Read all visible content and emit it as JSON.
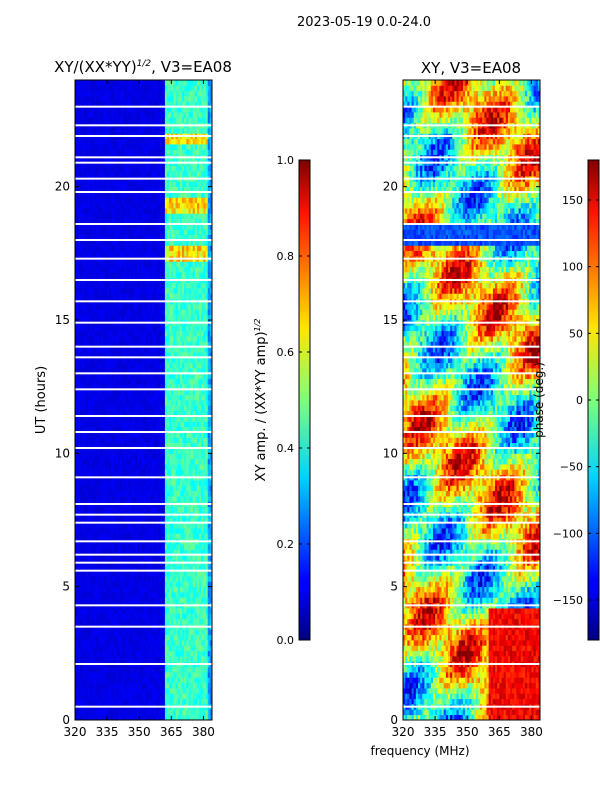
{
  "suptitle": "2023-05-19 0.0-24.0",
  "chart_data": [
    {
      "type": "heatmap",
      "title": "XY/(XX*YY)",
      "title_sup": "1/2",
      "title_suffix": ", V3=EA08",
      "xlabel": "",
      "ylabel": "UT (hours)",
      "xlim": [
        320,
        384
      ],
      "ylim": [
        0,
        24
      ],
      "xticks": [
        320,
        335,
        350,
        365,
        380
      ],
      "yticks": [
        0,
        5,
        10,
        15,
        20
      ],
      "colormap": "jet",
      "colorbar": {
        "label": "XY amp. / (XX*YY amp)",
        "label_sup": "1/2",
        "range": [
          0.0,
          1.0
        ],
        "ticks": [
          "0.0",
          "0.2",
          "0.4",
          "0.6",
          "0.8",
          "1.0"
        ]
      },
      "bright_channels_MHz": [
        364,
        368,
        372,
        376,
        380
      ],
      "bright_hours": [
        17.5,
        19.3,
        21.8
      ],
      "gap_hours": [
        0.5,
        2.1,
        3.5,
        4.3,
        5.6,
        5.9,
        6.2,
        6.7,
        7.4,
        7.7,
        8.1,
        9.1,
        10.2,
        10.8,
        11.4,
        12.4,
        13.0,
        13.6,
        14.0,
        14.9,
        15.7,
        16.5,
        17.3,
        18.0,
        18.6,
        19.8,
        20.3,
        20.9,
        21.1,
        21.9,
        22.3,
        23.0
      ]
    },
    {
      "type": "heatmap",
      "title": "XY, V3=EA08",
      "xlabel": "frequency (MHz)",
      "ylabel": "",
      "xlim": [
        320,
        384
      ],
      "ylim": [
        0,
        24
      ],
      "xticks": [
        320,
        335,
        350,
        365,
        380
      ],
      "yticks": [
        0,
        5,
        10,
        15,
        20
      ],
      "colormap": "jet",
      "colorbar": {
        "label": "phase (deg.)",
        "range": [
          -180,
          180
        ],
        "ticks": [
          "150",
          "100",
          "50",
          "0",
          "−50",
          "−100",
          "−150"
        ]
      },
      "gap_hours": [
        0.5,
        2.1,
        3.5,
        4.3,
        5.6,
        5.9,
        6.2,
        6.7,
        7.4,
        7.7,
        8.1,
        9.1,
        10.2,
        10.8,
        11.4,
        12.4,
        13.0,
        13.6,
        14.0,
        14.9,
        15.7,
        16.5,
        17.3,
        18.0,
        18.6,
        19.8,
        20.3,
        20.9,
        21.1,
        21.9,
        22.3,
        23.0
      ]
    }
  ]
}
